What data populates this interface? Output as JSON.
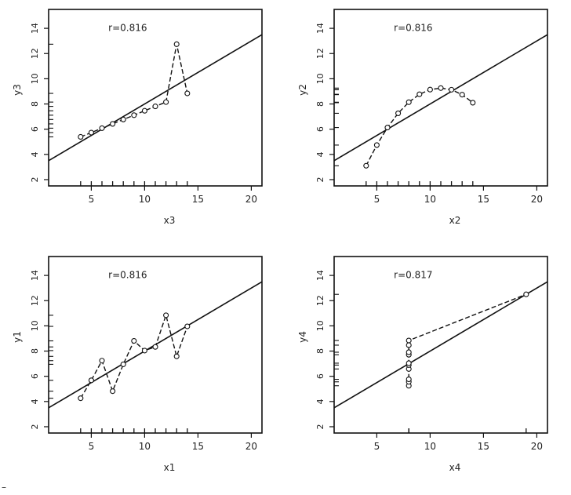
{
  "page": {
    "corner_mark": "–"
  },
  "chart_data": [
    {
      "type": "scatter",
      "title": "",
      "xlabel": "x3",
      "ylabel": "y3",
      "xlim": [
        1,
        21
      ],
      "ylim": [
        1.5,
        15.5
      ],
      "xticks": [
        5,
        10,
        15,
        20
      ],
      "yticks": [
        2,
        4,
        6,
        8,
        10,
        12,
        14
      ],
      "annotation": "r=0.816",
      "regression": {
        "intercept": 3.0,
        "slope": 0.5
      },
      "grid": false,
      "legend": "none",
      "series": [
        {
          "x": [
            4,
            5,
            6,
            7,
            8,
            9,
            10,
            11,
            12,
            13,
            14
          ],
          "y": [
            5.39,
            5.73,
            6.08,
            6.42,
            6.77,
            7.11,
            7.46,
            7.81,
            8.15,
            12.74,
            8.84
          ]
        }
      ]
    },
    {
      "type": "scatter",
      "title": "",
      "xlabel": "x2",
      "ylabel": "y2",
      "xlim": [
        1,
        21
      ],
      "ylim": [
        1.5,
        15.5
      ],
      "xticks": [
        5,
        10,
        15,
        20
      ],
      "yticks": [
        2,
        4,
        6,
        8,
        10,
        12,
        14
      ],
      "annotation": "r=0.816",
      "regression": {
        "intercept": 3.0,
        "slope": 0.5
      },
      "grid": false,
      "legend": "none",
      "series": [
        {
          "x": [
            4,
            5,
            6,
            7,
            8,
            9,
            10,
            11,
            12,
            13,
            14
          ],
          "y": [
            3.1,
            4.74,
            6.13,
            7.26,
            8.14,
            8.77,
            9.14,
            9.26,
            9.13,
            8.74,
            8.1
          ]
        }
      ]
    },
    {
      "type": "scatter",
      "title": "",
      "xlabel": "x1",
      "ylabel": "y1",
      "xlim": [
        1,
        21
      ],
      "ylim": [
        1.5,
        15.5
      ],
      "xticks": [
        5,
        10,
        15,
        20
      ],
      "yticks": [
        2,
        4,
        6,
        8,
        10,
        12,
        14
      ],
      "annotation": "r=0.816",
      "regression": {
        "intercept": 3.0,
        "slope": 0.5
      },
      "grid": false,
      "legend": "none",
      "series": [
        {
          "x": [
            4,
            5,
            6,
            7,
            8,
            9,
            10,
            11,
            12,
            13,
            14
          ],
          "y": [
            4.26,
            5.68,
            7.24,
            4.82,
            6.95,
            8.81,
            8.04,
            8.33,
            10.84,
            7.58,
            9.96
          ]
        }
      ]
    },
    {
      "type": "scatter",
      "title": "",
      "xlabel": "x4",
      "ylabel": "y4",
      "xlim": [
        1,
        21
      ],
      "ylim": [
        1.5,
        15.5
      ],
      "xticks": [
        5,
        10,
        15,
        20
      ],
      "yticks": [
        2,
        4,
        6,
        8,
        10,
        12,
        14
      ],
      "annotation": "r=0.817",
      "regression": {
        "intercept": 3.0,
        "slope": 0.5
      },
      "grid": false,
      "legend": "none",
      "series": [
        {
          "x": [
            8,
            8,
            8,
            8,
            8,
            8,
            8,
            8,
            8,
            8,
            19
          ],
          "y": [
            5.25,
            5.56,
            5.76,
            6.58,
            6.89,
            7.04,
            7.71,
            7.91,
            8.47,
            8.84,
            12.5
          ]
        }
      ]
    }
  ]
}
